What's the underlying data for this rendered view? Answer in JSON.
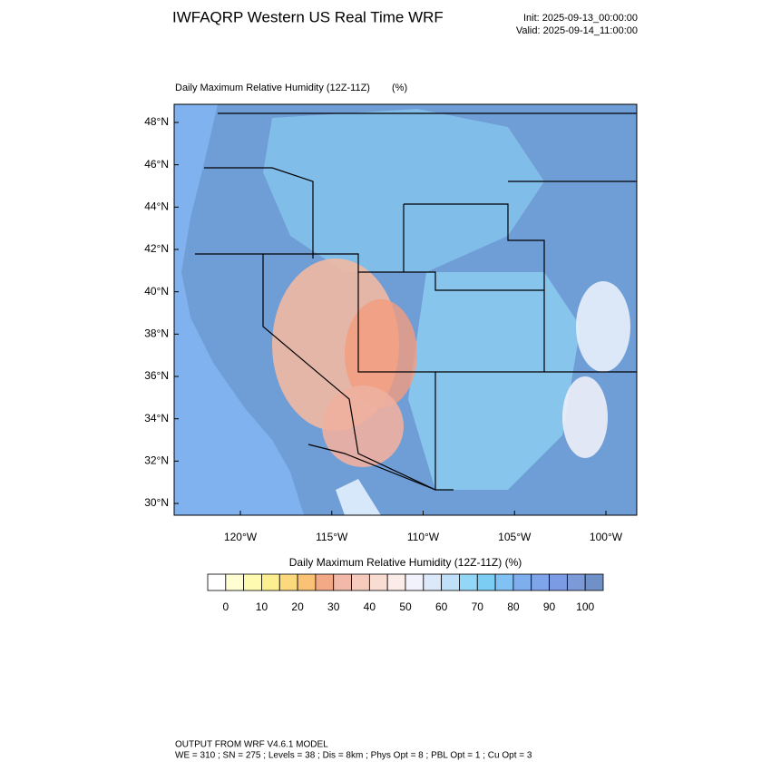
{
  "header": {
    "title": "IWFAQRP Western US Real Time WRF",
    "init": "Init: 2025-09-13_00:00:00",
    "valid": "Valid: 2025-09-14_11:00:00"
  },
  "map": {
    "title": "Daily Maximum Relative Humidity (12Z-11Z)",
    "units": "(%)",
    "lat_labels": [
      "48°N",
      "46°N",
      "44°N",
      "42°N",
      "40°N",
      "38°N",
      "36°N",
      "34°N",
      "32°N",
      "30°N"
    ],
    "lon_labels": [
      "120°W",
      "115°W",
      "110°W",
      "105°W",
      "100°W"
    ]
  },
  "colorbar": {
    "title": "Daily Maximum Relative Humidity (12Z-11Z)  (%)",
    "labels": [
      "0",
      "10",
      "20",
      "30",
      "40",
      "50",
      "60",
      "70",
      "80",
      "90",
      "100"
    ],
    "colors": [
      "#ffffff",
      "#fefed2",
      "#fefbb0",
      "#fdee90",
      "#fbd97c",
      "#f9c275",
      "#f3a985",
      "#f2b9a8",
      "#f6cbbd",
      "#f9dcd2",
      "#fcece8",
      "#f1f2fb",
      "#dbe9fb",
      "#bfe0f8",
      "#93d6f6",
      "#7ccdf4",
      "#82c1f3",
      "#7faeee",
      "#7ea5ea",
      "#7b9be4",
      "#7c99d8",
      "#6f91c7"
    ]
  },
  "footer": {
    "line1": "OUTPUT FROM WRF V4.6.1 MODEL",
    "line2": "WE = 310 ; SN = 275 ; Levels = 38 ; Dis = 8km ; Phys Opt = 8 ; PBL Opt = 1 ; Cu Opt = 3"
  }
}
